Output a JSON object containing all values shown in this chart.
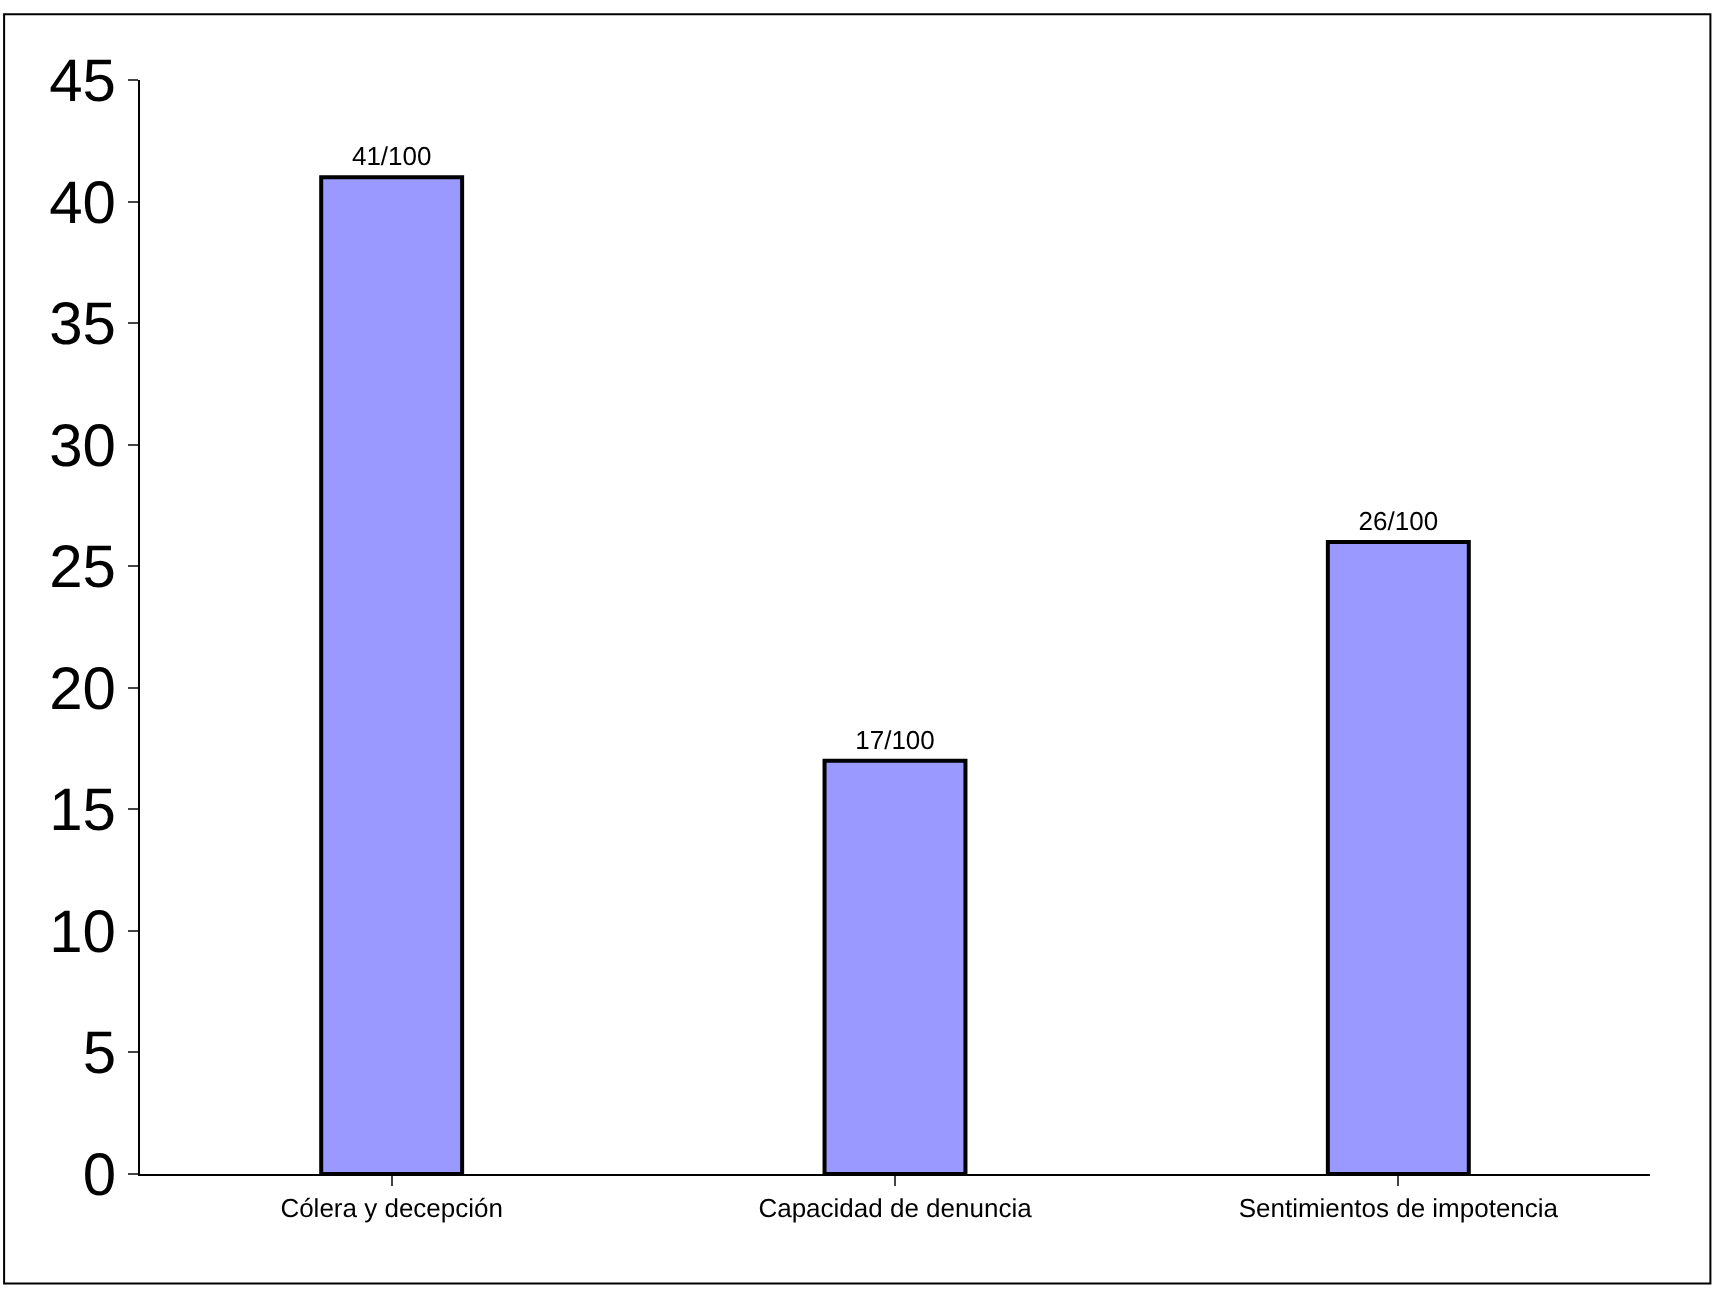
{
  "chart_data": {
    "type": "bar",
    "categories": [
      "Cólera y decepción",
      "Capacidad de denuncia",
      "Sentimientos de impotencia"
    ],
    "values": [
      41,
      17,
      26
    ],
    "color": "#9999ff",
    "value_labels": [
      "41/100",
      "17/100",
      "26/100"
    ],
    "ylim": [
      0,
      45
    ],
    "yticks": [
      0,
      5,
      10,
      15,
      20,
      25,
      30,
      35,
      40,
      45
    ],
    "grid": false,
    "legend": false
  }
}
